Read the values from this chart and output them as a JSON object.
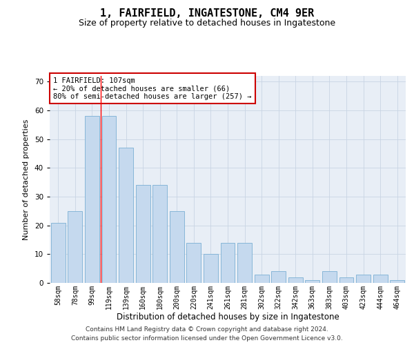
{
  "title": "1, FAIRFIELD, INGATESTONE, CM4 9ER",
  "subtitle": "Size of property relative to detached houses in Ingatestone",
  "xlabel": "Distribution of detached houses by size in Ingatestone",
  "ylabel": "Number of detached properties",
  "categories": [
    "58sqm",
    "78sqm",
    "99sqm",
    "119sqm",
    "139sqm",
    "160sqm",
    "180sqm",
    "200sqm",
    "220sqm",
    "241sqm",
    "261sqm",
    "281sqm",
    "302sqm",
    "322sqm",
    "342sqm",
    "363sqm",
    "383sqm",
    "403sqm",
    "423sqm",
    "444sqm",
    "464sqm"
  ],
  "values": [
    21,
    25,
    58,
    58,
    47,
    34,
    34,
    25,
    14,
    10,
    14,
    14,
    3,
    4,
    2,
    1,
    4,
    2,
    3,
    3,
    1
  ],
  "bar_color": "#c5d9ee",
  "bar_edge_color": "#7aafd4",
  "grid_color": "#c8d4e4",
  "bg_color": "#e8eef6",
  "red_line_x": 2.5,
  "annotation_text": "1 FAIRFIELD: 107sqm\n← 20% of detached houses are smaller (66)\n80% of semi-detached houses are larger (257) →",
  "annotation_box_color": "#ffffff",
  "annotation_box_edge": "#cc0000",
  "ylim": [
    0,
    72
  ],
  "title_fontsize": 11,
  "subtitle_fontsize": 9,
  "ylabel_fontsize": 8,
  "xlabel_fontsize": 8.5,
  "tick_fontsize": 7,
  "annotation_fontsize": 7.5,
  "footnote": "Contains HM Land Registry data © Crown copyright and database right 2024.\nContains public sector information licensed under the Open Government Licence v3.0.",
  "footnote_fontsize": 6.5
}
